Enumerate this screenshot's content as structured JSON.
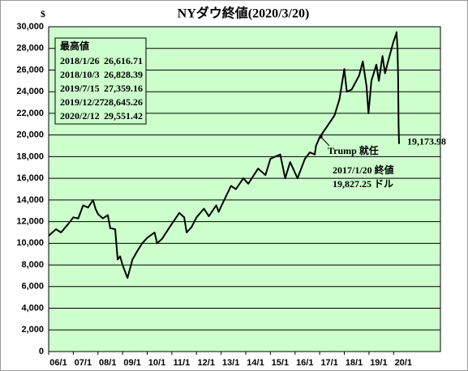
{
  "chart_data": {
    "type": "line",
    "title": "NYダウ終値(2020/3/20)",
    "y_unit": "$",
    "color": "#000000",
    "background": "#ccffcc",
    "grid": true,
    "x": [
      2006.0,
      2006.3,
      2006.5,
      2006.8,
      2007.0,
      2007.2,
      2007.4,
      2007.6,
      2007.8,
      2007.9,
      2008.0,
      2008.2,
      2008.4,
      2008.5,
      2008.7,
      2008.8,
      2008.9,
      2009.0,
      2009.2,
      2009.4,
      2009.6,
      2009.8,
      2010.0,
      2010.3,
      2010.4,
      2010.6,
      2010.8,
      2011.0,
      2011.3,
      2011.5,
      2011.6,
      2011.8,
      2012.0,
      2012.3,
      2012.5,
      2012.8,
      2012.9,
      2013.0,
      2013.4,
      2013.6,
      2013.9,
      2014.1,
      2014.5,
      2014.8,
      2015.0,
      2015.4,
      2015.6,
      2015.8,
      2016.0,
      2016.1,
      2016.4,
      2016.6,
      2016.8,
      2016.85,
      2017.0,
      2017.3,
      2017.6,
      2017.8,
      2018.0,
      2018.1,
      2018.3,
      2018.6,
      2018.75,
      2018.9,
      2018.98,
      2019.1,
      2019.3,
      2019.4,
      2019.55,
      2019.65,
      2019.8,
      2019.99,
      2020.1,
      2020.12,
      2020.16,
      2020.18,
      2020.2,
      2020.22
    ],
    "values": [
      10700,
      11300,
      11000,
      11800,
      12400,
      12300,
      13500,
      13300,
      14000,
      13200,
      12700,
      12300,
      12600,
      11400,
      11300,
      8500,
      8800,
      8000,
      6800,
      8500,
      9300,
      10000,
      10500,
      11000,
      10000,
      10400,
      11100,
      11800,
      12800,
      12400,
      11000,
      11500,
      12400,
      13200,
      12500,
      13500,
      12900,
      13400,
      15300,
      15000,
      16000,
      15500,
      16900,
      16300,
      17800,
      18200,
      16000,
      17500,
      16500,
      16000,
      17800,
      18400,
      18200,
      19000,
      19800,
      20800,
      21800,
      23300,
      26100,
      24000,
      24200,
      25500,
      26800,
      24500,
      22000,
      25000,
      26500,
      25000,
      27300,
      25700,
      27000,
      28600,
      29300,
      29500,
      28000,
      25500,
      21000,
      19173.98
    ],
    "end_label": "19,173.98",
    "xlim": [
      2006,
      2021.9
    ],
    "ylim": [
      0,
      30000
    ],
    "xticks": [
      {
        "value": 2006,
        "label": "06/1"
      },
      {
        "value": 2007,
        "label": "07/1"
      },
      {
        "value": 2008,
        "label": "08/1"
      },
      {
        "value": 2009,
        "label": "09/1"
      },
      {
        "value": 2010,
        "label": "10/1"
      },
      {
        "value": 2011,
        "label": "11/1"
      },
      {
        "value": 2012,
        "label": "12/1"
      },
      {
        "value": 2013,
        "label": "13/1"
      },
      {
        "value": 2014,
        "label": "14/1"
      },
      {
        "value": 2015,
        "label": "15/1"
      },
      {
        "value": 2016,
        "label": "16/1"
      },
      {
        "value": 2017,
        "label": "17/1"
      },
      {
        "value": 2018,
        "label": "18/1"
      },
      {
        "value": 2019,
        "label": "19/1"
      },
      {
        "value": 2020,
        "label": "20/1"
      }
    ],
    "yticks": [
      0,
      {
        "value": 2000,
        "label": "2,000"
      },
      {
        "value": 4000,
        "label": "4,000"
      },
      {
        "value": 6000,
        "label": "6,000"
      },
      {
        "value": 8000,
        "label": "8,000"
      },
      {
        "value": 10000,
        "label": "10,000"
      },
      {
        "value": 12000,
        "label": "12,000"
      },
      {
        "value": 14000,
        "label": "14,000"
      },
      {
        "value": 16000,
        "label": "16,000"
      },
      {
        "value": 18000,
        "label": "18,000"
      },
      {
        "value": 20000,
        "label": "20,000"
      },
      {
        "value": 22000,
        "label": "22,000"
      },
      {
        "value": 24000,
        "label": "24,000"
      },
      {
        "value": 26000,
        "label": "26,000"
      },
      {
        "value": 28000,
        "label": "28,000"
      },
      {
        "value": 30000,
        "label": "30,000"
      }
    ],
    "highs_title": "最高値",
    "highs": [
      {
        "date": "2018/1/26",
        "value": "26,616.71"
      },
      {
        "date": "2018/10/3",
        "value": "26,828.39"
      },
      {
        "date": "2019/7/15",
        "value": "27,359.16"
      },
      {
        "date": "2019/12/27",
        "value": "28,645.26"
      },
      {
        "date": "2020/2/12",
        "value": "29,551.42"
      }
    ],
    "inauguration": {
      "x": 2017.05,
      "value": 19827.25,
      "label": "Trump 就任",
      "date_label": "2017/1/20 終値",
      "value_label": "19,827.25 ドル"
    }
  }
}
